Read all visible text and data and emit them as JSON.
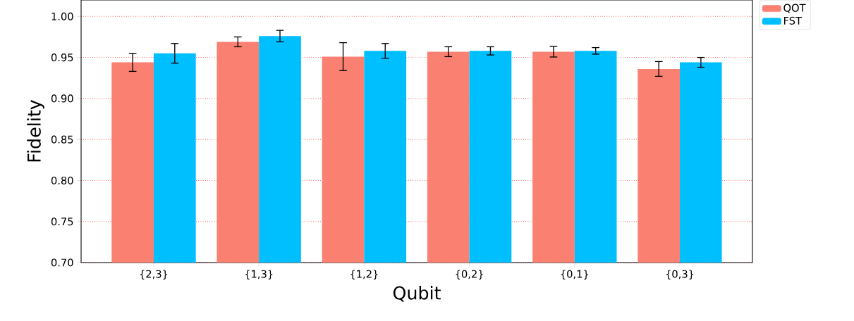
{
  "chart_data": {
    "type": "bar",
    "xlabel": "Qubit",
    "ylabel": "Fidelity",
    "categories": [
      "{2,3}",
      "{1,3}",
      "{1,2}",
      "{0,2}",
      "{0,1}",
      "{0,3}"
    ],
    "series": [
      {
        "name": "QOT",
        "color": "#fa8072",
        "values": [
          0.944,
          0.969,
          0.951,
          0.957,
          0.957,
          0.936
        ],
        "errors": [
          0.011,
          0.006,
          0.017,
          0.006,
          0.0065,
          0.009
        ]
      },
      {
        "name": "FST",
        "color": "#00bfff",
        "values": [
          0.955,
          0.976,
          0.958,
          0.958,
          0.958,
          0.944
        ],
        "errors": [
          0.012,
          0.007,
          0.009,
          0.005,
          0.004,
          0.006
        ]
      }
    ],
    "ylim": [
      0.7,
      1.02
    ],
    "yticks": [
      {
        "value": 0.7,
        "label": "0.70"
      },
      {
        "value": 0.75,
        "label": "0.75"
      },
      {
        "value": 0.8,
        "label": "0.80"
      },
      {
        "value": 0.85,
        "label": "0.85"
      },
      {
        "value": 0.9,
        "label": "0.90"
      },
      {
        "value": 0.95,
        "label": "0.95"
      },
      {
        "value": 1.0,
        "label": "1.00"
      }
    ],
    "grid": "y",
    "legend": "top right"
  }
}
